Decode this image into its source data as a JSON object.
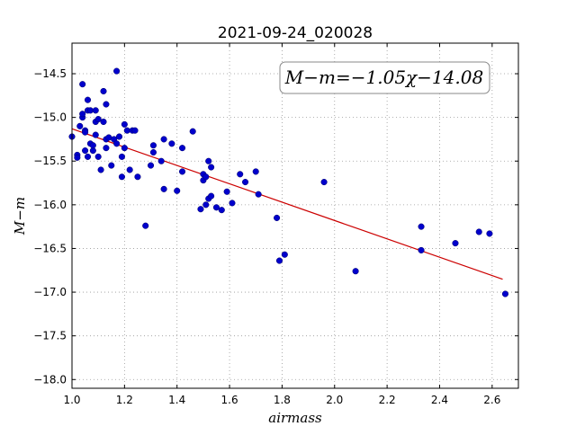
{
  "chart_data": {
    "type": "scatter",
    "title": "2021-09-24_020028",
    "xlabel": "airmass",
    "ylabel": "M−m",
    "annotation": "M−m=−1.05χ−14.08",
    "xlim": [
      1.0,
      2.7
    ],
    "ylim": [
      -18.1,
      -14.15
    ],
    "y_inverted": true,
    "grid": true,
    "x_ticks": [
      1.0,
      1.2,
      1.4,
      1.6,
      1.8,
      2.0,
      2.2,
      2.4,
      2.6
    ],
    "x_tick_labels": [
      "1.0",
      "1.2",
      "1.4",
      "1.6",
      "1.8",
      "2.0",
      "2.2",
      "2.4",
      "2.6"
    ],
    "y_ticks": [
      -14.5,
      -15.0,
      -15.5,
      -16.0,
      -16.5,
      -17.0,
      -17.5,
      -18.0
    ],
    "y_tick_labels": [
      "−14.5",
      "−15.0",
      "−15.5",
      "−16.0",
      "−16.5",
      "−17.0",
      "−17.5",
      "−18.0"
    ],
    "colors": {
      "points": "#0000cc",
      "fit": "#cc0000",
      "grid": "#999999"
    },
    "fit": {
      "slope": -1.05,
      "intercept": -14.08,
      "x_range": [
        1.0,
        2.64
      ]
    },
    "points": [
      [
        1.0,
        -15.22
      ],
      [
        1.02,
        -15.43
      ],
      [
        1.02,
        -15.46
      ],
      [
        1.03,
        -15.1
      ],
      [
        1.04,
        -14.62
      ],
      [
        1.04,
        -15.0
      ],
      [
        1.04,
        -14.96
      ],
      [
        1.05,
        -15.15
      ],
      [
        1.05,
        -15.38
      ],
      [
        1.05,
        -15.17
      ],
      [
        1.06,
        -14.8
      ],
      [
        1.06,
        -14.92
      ],
      [
        1.06,
        -15.45
      ],
      [
        1.07,
        -14.92
      ],
      [
        1.07,
        -15.3
      ],
      [
        1.08,
        -15.38
      ],
      [
        1.08,
        -15.32
      ],
      [
        1.09,
        -15.05
      ],
      [
        1.09,
        -14.92
      ],
      [
        1.09,
        -15.2
      ],
      [
        1.1,
        -15.02
      ],
      [
        1.1,
        -15.45
      ],
      [
        1.11,
        -15.6
      ],
      [
        1.12,
        -15.05
      ],
      [
        1.12,
        -14.7
      ],
      [
        1.13,
        -14.85
      ],
      [
        1.13,
        -15.25
      ],
      [
        1.13,
        -15.35
      ],
      [
        1.14,
        -15.23
      ],
      [
        1.15,
        -15.55
      ],
      [
        1.16,
        -15.25
      ],
      [
        1.17,
        -15.3
      ],
      [
        1.17,
        -14.47
      ],
      [
        1.18,
        -15.22
      ],
      [
        1.19,
        -15.45
      ],
      [
        1.19,
        -15.68
      ],
      [
        1.2,
        -15.08
      ],
      [
        1.2,
        -15.35
      ],
      [
        1.21,
        -15.15
      ],
      [
        1.22,
        -15.6
      ],
      [
        1.23,
        -15.15
      ],
      [
        1.24,
        -15.15
      ],
      [
        1.25,
        -15.68
      ],
      [
        1.28,
        -16.24
      ],
      [
        1.3,
        -15.55
      ],
      [
        1.31,
        -15.4
      ],
      [
        1.31,
        -15.32
      ],
      [
        1.34,
        -15.5
      ],
      [
        1.35,
        -15.25
      ],
      [
        1.35,
        -15.82
      ],
      [
        1.38,
        -15.3
      ],
      [
        1.4,
        -15.84
      ],
      [
        1.42,
        -15.62
      ],
      [
        1.42,
        -15.35
      ],
      [
        1.46,
        -15.16
      ],
      [
        1.49,
        -16.05
      ],
      [
        1.5,
        -15.72
      ],
      [
        1.5,
        -15.65
      ],
      [
        1.51,
        -15.68
      ],
      [
        1.51,
        -16.0
      ],
      [
        1.52,
        -15.93
      ],
      [
        1.52,
        -15.5
      ],
      [
        1.53,
        -15.57
      ],
      [
        1.53,
        -15.9
      ],
      [
        1.55,
        -16.03
      ],
      [
        1.57,
        -16.06
      ],
      [
        1.59,
        -15.85
      ],
      [
        1.61,
        -15.98
      ],
      [
        1.64,
        -15.65
      ],
      [
        1.66,
        -15.74
      ],
      [
        1.7,
        -15.62
      ],
      [
        1.71,
        -15.88
      ],
      [
        1.78,
        -16.15
      ],
      [
        1.79,
        -16.64
      ],
      [
        1.81,
        -16.57
      ],
      [
        1.96,
        -15.74
      ],
      [
        2.08,
        -16.76
      ],
      [
        2.33,
        -16.25
      ],
      [
        2.33,
        -16.52
      ],
      [
        2.46,
        -16.44
      ],
      [
        2.55,
        -16.31
      ],
      [
        2.59,
        -16.33
      ],
      [
        2.65,
        -17.02
      ]
    ]
  }
}
